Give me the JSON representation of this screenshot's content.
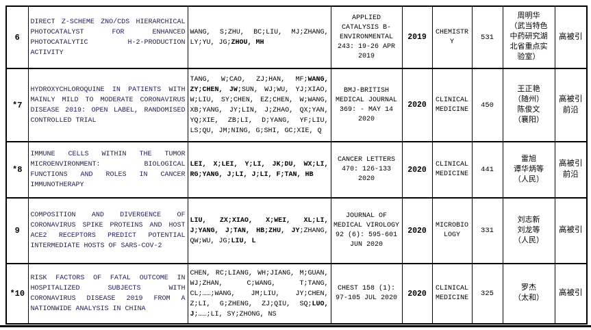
{
  "document": {
    "columns": [
      "rank",
      "title",
      "authors",
      "source",
      "year",
      "field",
      "citations",
      "person",
      "tags"
    ],
    "rows": [
      {
        "rank": "6",
        "title": "DIRECT Z-SCHEME ZNO/CDS HIERARCHICAL PHOTOCATALYST FOR ENHANCED PHOTOCATALYTIC H-2-PRODUCTION ACTIVITY",
        "authors": [
          {
            "text": "WANG, S;ZHU, BC;LIU, MJ;ZHANG, LY;YU, JG;",
            "bold": false
          },
          {
            "text": "ZHOU, MH",
            "bold": true
          }
        ],
        "source": "APPLIED CATALYSIS B-ENVIRONMENTAL 243: 19-26 APR 2019",
        "year": "2019",
        "field": "CHEMISTRY",
        "citations": "531",
        "person": "周明华\n（武当特色\n中药研究湖\n北省重点实\n验室）",
        "tags": "高被引"
      },
      {
        "rank": "*7",
        "title": "HYDROXYCHLOROQUINE IN PATIENTS WITH MAINLY MILD TO MODERATE CORONAVIRUS DISEASE 2019: OPEN LABEL, RANDOMISED CONTROLLED TRIAL",
        "authors": [
          {
            "text": "TANG, W;CAO, ZJ;HAN, MF;",
            "bold": false
          },
          {
            "text": "WANG, ZY;CHEN, JW",
            "bold": true
          },
          {
            "text": ";SUN, WJ;WU, YJ;XIAO, W;LIU, SY;CHEN, EZ;CHEN, W;WANG, XB;YANG, JY;LIN, J;ZHAO, QX;YAN, YQ;XIE, ZB;LI, D;YANG, YF;LIU, LS;QU, JM;NING, G;SHI, GC;XIE, Q",
            "bold": false
          }
        ],
        "source": "BMJ-BRITISH MEDICAL JOURNAL 369: - MAY 14 2020",
        "year": "2020",
        "field": "CLINICAL MEDICINE",
        "citations": "450",
        "person": "王正艳\n（随州）\n陈俊文\n（襄阳）",
        "tags": "高被引\n前沿"
      },
      {
        "rank": "*8",
        "title": "IMMUNE CELLS WITHIN THE TUMOR MICROENVIRONMENT: BIOLOGICAL FUNCTIONS AND ROLES IN CANCER IMMUNOTHERAPY",
        "authors": [
          {
            "text": "LEI, X;LEI, Y;LI, JK;DU, WX;LI, RG;YANG, J;LI, J;LI, F;TAN, HB",
            "bold": true
          }
        ],
        "source": "CANCER LETTERS 470: 126-133 2020",
        "year": "2020",
        "field": "CLINICAL MEDICINE",
        "citations": "441",
        "person": "雷旭\n谭华炳等\n（人民）",
        "tags": "高被引\n前沿"
      },
      {
        "rank": "9",
        "title": "COMPOSITION AND DIVERGENCE OF CORONAVIRUS SPIKE PROTEINS AND HOST ACE2 RECEPTORS PREDICT POTENTIAL INTERMEDIATE HOSTS OF SARS-COV-2",
        "authors": [
          {
            "text": "LIU, ZX;XIAO, X;WEI, XL;LI, J;YANG, J;TAN, HB;ZHU, JY",
            "bold": true
          },
          {
            "text": ";ZHANG, QW;WU, JG;",
            "bold": false
          },
          {
            "text": "LIU, L",
            "bold": true
          }
        ],
        "source": "JOURNAL OF MEDICAL VIROLOGY 92 (6): 595-601 JUN 2020",
        "year": "2020",
        "field": "MICROBIOLOGY",
        "citations": "331",
        "person": "刘志新\n刘龙等\n（人民）",
        "tags": "高被引"
      },
      {
        "rank": "*10",
        "title": "RISK FACTORS OF FATAL OUTCOME IN HOSPITALIZED SUBJECTS WITH CORONAVIRUS DISEASE 2019 FROM A NATIONWIDE ANALYSIS IN CHINA",
        "authors": [
          {
            "text": "CHEN, RC;LIANG, WH;JIANG, M;GUAN, WJ;ZHAN, C;WANG, T;TANG, CL;……;WANG, JM;LIU, JY;CHEN, Z;LI, G;ZHENG, ZJ;QIU, SQ;",
            "bold": false
          },
          {
            "text": "LUO, J",
            "bold": true
          },
          {
            "text": ";……;LI, SY;ZHONG, NS",
            "bold": false
          }
        ],
        "source": "CHEST 158 (1): 97-105 JUL 2020",
        "year": "2020",
        "field": "CLINICAL MEDICINE",
        "citations": "325",
        "person": "罗杰\n（太和）",
        "tags": "高被引"
      }
    ]
  },
  "colors": {
    "title_text": "#20205c",
    "body_text": "#000000",
    "border": "#000000",
    "background": "#ffffff"
  }
}
